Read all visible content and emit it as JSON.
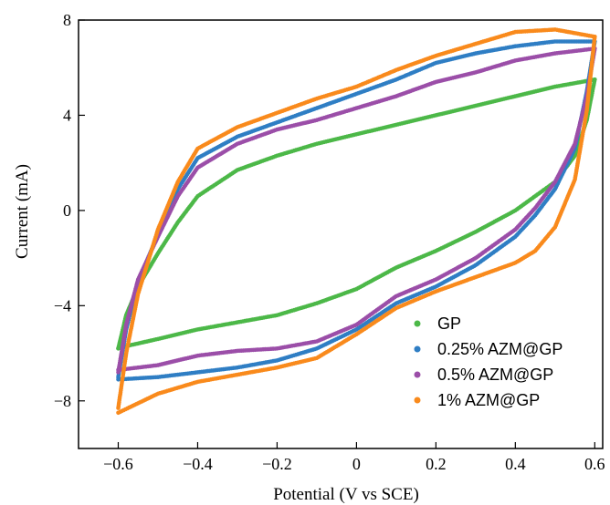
{
  "chart_data": {
    "type": "scatter",
    "xlabel": "Potential (V vs SCE)",
    "ylabel": "Current (mA)",
    "xlim": [
      -0.7,
      0.62
    ],
    "ylim": [
      -10,
      8
    ],
    "xticks": [
      -0.6,
      -0.4,
      -0.2,
      0,
      0.2,
      0.4,
      0.6
    ],
    "xtick_labels": [
      "−0.6",
      "−0.4",
      "−0.2",
      "0",
      "0.2",
      "0.4",
      "0.6"
    ],
    "yticks": [
      -8,
      -4,
      0,
      4,
      8
    ],
    "ytick_labels": [
      "−8",
      "−4",
      "0",
      "4",
      "8"
    ],
    "grid": false,
    "legend_position": "bottom-right",
    "series": [
      {
        "name": "GP",
        "color": "#4cb848",
        "upper": [
          [
            -0.6,
            -5.8
          ],
          [
            -0.58,
            -4.4
          ],
          [
            -0.55,
            -3.2
          ],
          [
            -0.5,
            -1.8
          ],
          [
            -0.45,
            -0.5
          ],
          [
            -0.4,
            0.6
          ],
          [
            -0.3,
            1.7
          ],
          [
            -0.2,
            2.3
          ],
          [
            -0.1,
            2.8
          ],
          [
            0.0,
            3.2
          ],
          [
            0.1,
            3.6
          ],
          [
            0.2,
            4.0
          ],
          [
            0.3,
            4.4
          ],
          [
            0.4,
            4.8
          ],
          [
            0.5,
            5.2
          ],
          [
            0.6,
            5.5
          ]
        ],
        "lower": [
          [
            0.6,
            5.5
          ],
          [
            0.58,
            3.8
          ],
          [
            0.55,
            2.3
          ],
          [
            0.5,
            1.2
          ],
          [
            0.4,
            0.0
          ],
          [
            0.3,
            -0.9
          ],
          [
            0.2,
            -1.7
          ],
          [
            0.1,
            -2.4
          ],
          [
            0.0,
            -3.3
          ],
          [
            -0.1,
            -3.9
          ],
          [
            -0.2,
            -4.4
          ],
          [
            -0.3,
            -4.7
          ],
          [
            -0.4,
            -5.0
          ],
          [
            -0.5,
            -5.4
          ],
          [
            -0.58,
            -5.7
          ],
          [
            -0.6,
            -5.8
          ]
        ]
      },
      {
        "name": "0.25% AZM@GP",
        "color": "#2f7ec4",
        "upper": [
          [
            -0.6,
            -7.0
          ],
          [
            -0.58,
            -5.0
          ],
          [
            -0.55,
            -3.0
          ],
          [
            -0.5,
            -1.0
          ],
          [
            -0.45,
            0.9
          ],
          [
            -0.4,
            2.2
          ],
          [
            -0.3,
            3.1
          ],
          [
            -0.2,
            3.7
          ],
          [
            -0.1,
            4.3
          ],
          [
            0.0,
            4.9
          ],
          [
            0.1,
            5.5
          ],
          [
            0.2,
            6.2
          ],
          [
            0.3,
            6.6
          ],
          [
            0.4,
            6.9
          ],
          [
            0.5,
            7.1
          ],
          [
            0.6,
            7.1
          ]
        ],
        "lower": [
          [
            0.6,
            7.1
          ],
          [
            0.58,
            5.0
          ],
          [
            0.55,
            2.6
          ],
          [
            0.5,
            0.9
          ],
          [
            0.45,
            -0.2
          ],
          [
            0.4,
            -1.1
          ],
          [
            0.3,
            -2.3
          ],
          [
            0.2,
            -3.2
          ],
          [
            0.1,
            -3.9
          ],
          [
            0.0,
            -5.0
          ],
          [
            -0.1,
            -5.8
          ],
          [
            -0.2,
            -6.3
          ],
          [
            -0.3,
            -6.6
          ],
          [
            -0.4,
            -6.8
          ],
          [
            -0.5,
            -7.0
          ],
          [
            -0.6,
            -7.1
          ]
        ]
      },
      {
        "name": "0.5% AZM@GP",
        "color": "#9b4ea8",
        "upper": [
          [
            -0.6,
            -6.8
          ],
          [
            -0.58,
            -4.8
          ],
          [
            -0.55,
            -2.9
          ],
          [
            -0.5,
            -1.1
          ],
          [
            -0.45,
            0.6
          ],
          [
            -0.4,
            1.8
          ],
          [
            -0.3,
            2.8
          ],
          [
            -0.2,
            3.4
          ],
          [
            -0.1,
            3.8
          ],
          [
            0.0,
            4.3
          ],
          [
            0.1,
            4.8
          ],
          [
            0.2,
            5.4
          ],
          [
            0.3,
            5.8
          ],
          [
            0.4,
            6.3
          ],
          [
            0.5,
            6.6
          ],
          [
            0.6,
            6.8
          ]
        ],
        "lower": [
          [
            0.6,
            6.8
          ],
          [
            0.58,
            4.8
          ],
          [
            0.55,
            2.8
          ],
          [
            0.5,
            1.2
          ],
          [
            0.45,
            0.1
          ],
          [
            0.4,
            -0.8
          ],
          [
            0.3,
            -2.0
          ],
          [
            0.2,
            -2.9
          ],
          [
            0.1,
            -3.6
          ],
          [
            0.0,
            -4.8
          ],
          [
            -0.1,
            -5.5
          ],
          [
            -0.2,
            -5.8
          ],
          [
            -0.3,
            -5.9
          ],
          [
            -0.4,
            -6.1
          ],
          [
            -0.5,
            -6.5
          ],
          [
            -0.6,
            -6.7
          ]
        ]
      },
      {
        "name": "1% AZM@GP",
        "color": "#f98a1c",
        "upper": [
          [
            -0.6,
            -8.3
          ],
          [
            -0.58,
            -6.0
          ],
          [
            -0.55,
            -3.5
          ],
          [
            -0.5,
            -0.8
          ],
          [
            -0.45,
            1.2
          ],
          [
            -0.4,
            2.6
          ],
          [
            -0.3,
            3.5
          ],
          [
            -0.2,
            4.1
          ],
          [
            -0.1,
            4.7
          ],
          [
            0.0,
            5.2
          ],
          [
            0.1,
            5.9
          ],
          [
            0.2,
            6.5
          ],
          [
            0.3,
            7.0
          ],
          [
            0.4,
            7.5
          ],
          [
            0.5,
            7.6
          ],
          [
            0.6,
            7.3
          ]
        ],
        "lower": [
          [
            0.6,
            7.3
          ],
          [
            0.58,
            4.2
          ],
          [
            0.55,
            1.3
          ],
          [
            0.5,
            -0.7
          ],
          [
            0.45,
            -1.7
          ],
          [
            0.4,
            -2.2
          ],
          [
            0.3,
            -2.8
          ],
          [
            0.2,
            -3.4
          ],
          [
            0.1,
            -4.1
          ],
          [
            0.0,
            -5.2
          ],
          [
            -0.1,
            -6.2
          ],
          [
            -0.2,
            -6.6
          ],
          [
            -0.3,
            -6.9
          ],
          [
            -0.4,
            -7.2
          ],
          [
            -0.5,
            -7.7
          ],
          [
            -0.6,
            -8.5
          ]
        ]
      }
    ]
  }
}
